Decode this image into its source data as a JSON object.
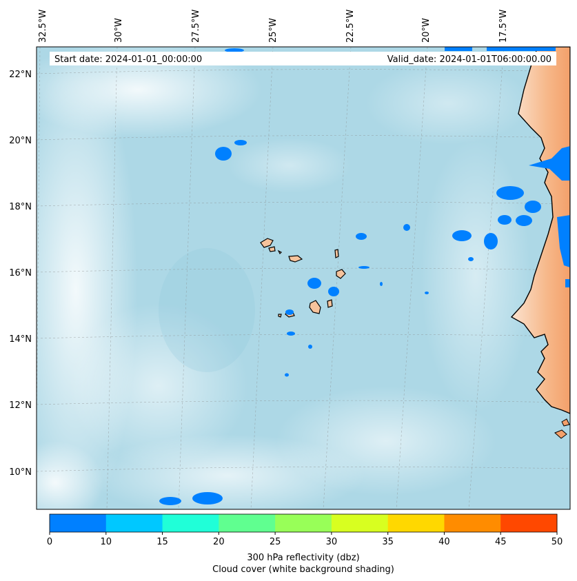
{
  "header": {
    "start_date": "Start date: 2024-01-01_00:00:00",
    "valid_date": "Valid_date: 2024-01-01T06:00:00.00"
  },
  "axes": {
    "lon_labels": [
      "32.5°W",
      "30°W",
      "27.5°W",
      "25°W",
      "22.5°W",
      "20°W",
      "17.5°W"
    ],
    "lat_labels": [
      "22°N",
      "20°N",
      "18°N",
      "16°N",
      "14°N",
      "12°N",
      "10°N"
    ]
  },
  "colorbar": {
    "ticks": [
      "0",
      "10",
      "15",
      "20",
      "25",
      "30",
      "35",
      "40",
      "45",
      "50"
    ],
    "colors": [
      "#0080ff",
      "#00c8ff",
      "#20ffd8",
      "#60ff90",
      "#98ff58",
      "#d8ff20",
      "#ffd800",
      "#ff8c00",
      "#ff4800"
    ],
    "label_line1": "300 hPa reflectivity (dbz)",
    "label_line2": "Cloud cover (white background shading)"
  },
  "colors": {
    "ocean": "#add8e6",
    "land": "#f4a76c",
    "reflectivity_low": "#0080ff"
  }
}
